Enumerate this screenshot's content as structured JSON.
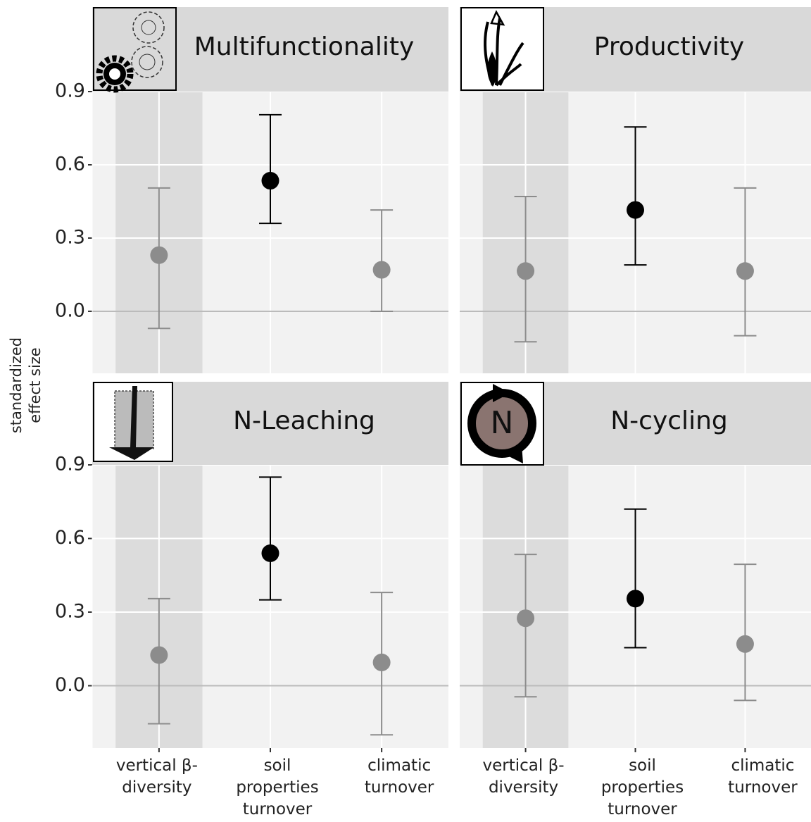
{
  "ylabel": "standardized effect size",
  "chart_data": [
    {
      "type": "pointrange",
      "title": "Multifunctionality",
      "values": [
        0.23,
        0.535,
        0.17
      ],
      "lower": [
        -0.07,
        0.36,
        0.0
      ],
      "upper": [
        0.505,
        0.805,
        0.415
      ],
      "colors": [
        "#8c8c8c",
        "#000000",
        "#8c8c8c"
      ],
      "refline": 0,
      "ylim": [
        -0.254,
        0.9
      ],
      "yticks": [
        {
          "value": 0,
          "label": "0.0"
        },
        0.3,
        0.6,
        0.9
      ],
      "grid": true
    },
    {
      "type": "pointrange",
      "title": "Productivity",
      "values": [
        0.165,
        0.415,
        0.165
      ],
      "lower": [
        -0.125,
        0.19,
        -0.1
      ],
      "upper": [
        0.47,
        0.755,
        0.505
      ],
      "colors": [
        "#8c8c8c",
        "#000000",
        "#8c8c8c"
      ],
      "refline": 0,
      "ylim": [
        -0.254,
        0.9
      ],
      "yticks": [
        {
          "value": 0,
          "label": "0.0"
        },
        0.3,
        0.6,
        0.9
      ],
      "grid": true
    },
    {
      "type": "pointrange",
      "title": "N-Leaching",
      "categories": [
        "vertical β-diversity",
        "soil properties turnover",
        "climatic turnover"
      ],
      "values": [
        0.125,
        0.54,
        0.095
      ],
      "lower": [
        -0.155,
        0.35,
        -0.2
      ],
      "upper": [
        0.355,
        0.85,
        0.38
      ],
      "colors": [
        "#8c8c8c",
        "#000000",
        "#8c8c8c"
      ],
      "refline": 0,
      "ylim": [
        -0.254,
        0.9
      ],
      "yticks": [
        {
          "value": 0,
          "label": "0.0"
        },
        0.3,
        0.6,
        0.9
      ],
      "grid": true
    },
    {
      "type": "pointrange",
      "title": "N-cycling",
      "icon_label": "N",
      "categories": [
        "vertical β-diversity",
        "soil properties turnover",
        "climatic turnover"
      ],
      "values": [
        0.275,
        0.355,
        0.17
      ],
      "lower": [
        -0.045,
        0.155,
        -0.06
      ],
      "upper": [
        0.535,
        0.72,
        0.495
      ],
      "colors": [
        "#8c8c8c",
        "#000000",
        "#8c8c8c"
      ],
      "refline": 0,
      "ylim": [
        -0.254,
        0.9
      ],
      "yticks": [
        {
          "value": 0,
          "label": "0.0"
        },
        0.3,
        0.6,
        0.9
      ],
      "grid": true
    }
  ]
}
